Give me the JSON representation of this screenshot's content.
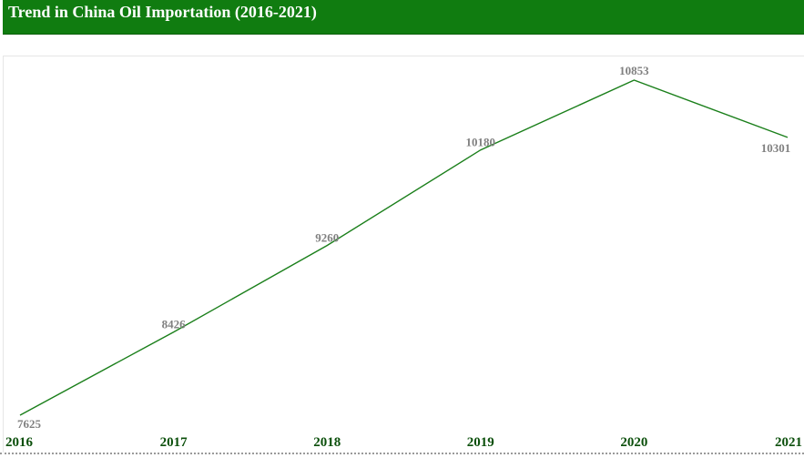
{
  "header": {
    "title": "Trend in China Oil Importation (2016-2021)"
  },
  "colors": {
    "header_bg": "#107c10",
    "line": "#1a7f1a",
    "data_label": "#808080",
    "x_label": "#0b4f0b"
  },
  "chart_data": {
    "type": "line",
    "title": "Trend in China Oil Importation (2016-2021)",
    "xlabel": "",
    "ylabel": "",
    "x": [
      "2016",
      "2017",
      "2018",
      "2019",
      "2020",
      "2021"
    ],
    "series": [
      {
        "values": [
          7625,
          8426,
          9260,
          10180,
          10853,
          10301
        ]
      }
    ],
    "data_labels": [
      "7625",
      "8426",
      "9260",
      "10180",
      "10853",
      "10301"
    ],
    "grid": false,
    "legend": "none"
  }
}
